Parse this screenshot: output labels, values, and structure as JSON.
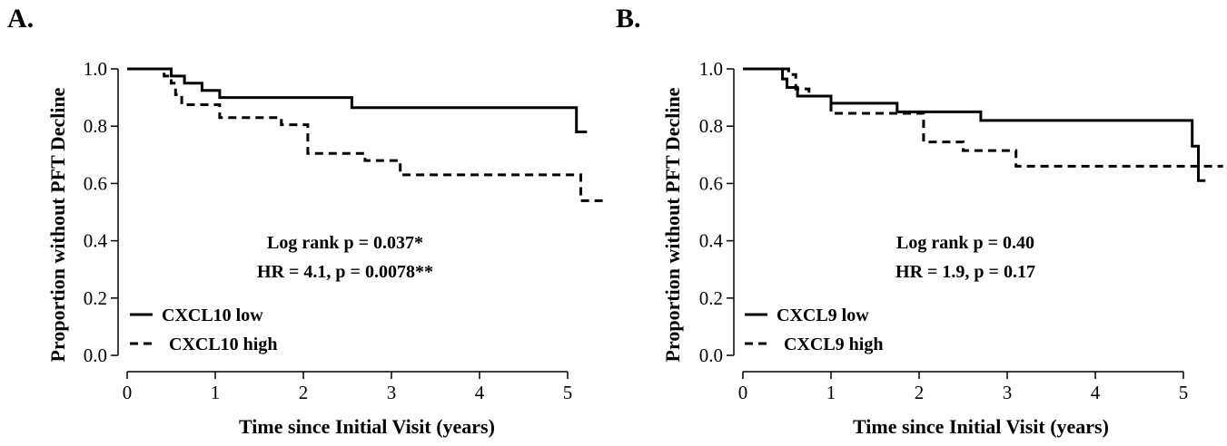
{
  "chart_data": [
    {
      "type": "line",
      "panel_label": "A.",
      "xlabel": "Time since Initial Visit (years)",
      "ylabel": "Proportion without PFT Decline",
      "xlim": [
        0,
        5.45
      ],
      "ylim": [
        0,
        1.0
      ],
      "xticks": [
        "0",
        "1",
        "2",
        "3",
        "4",
        "5"
      ],
      "yticks": [
        "0.0",
        "0.2",
        "0.4",
        "0.6",
        "0.8",
        "1.0"
      ],
      "annotations": [
        "Log rank p = 0.037*",
        "HR = 4.1, p = 0.0078**"
      ],
      "legend_position": "bottom-left",
      "series": [
        {
          "name": "CXCL10 low",
          "style": "solid",
          "color": "#000000",
          "x": [
            0,
            0.5,
            0.5,
            0.65,
            0.65,
            0.85,
            0.85,
            1.05,
            1.05,
            2.55,
            2.55,
            5.1,
            5.1,
            5.22
          ],
          "y": [
            1.0,
            1.0,
            0.975,
            0.975,
            0.95,
            0.95,
            0.925,
            0.925,
            0.9,
            0.9,
            0.865,
            0.865,
            0.78,
            0.78
          ]
        },
        {
          "name": "CXCL10 high",
          "style": "dashed",
          "color": "#000000",
          "x": [
            0,
            0.42,
            0.42,
            0.5,
            0.5,
            0.55,
            0.55,
            0.62,
            0.62,
            1.05,
            1.05,
            1.75,
            1.75,
            2.05,
            2.05,
            2.7,
            2.7,
            3.1,
            3.1,
            5.15,
            5.15,
            5.45
          ],
          "y": [
            1.0,
            1.0,
            0.975,
            0.975,
            0.95,
            0.95,
            0.91,
            0.91,
            0.875,
            0.875,
            0.83,
            0.83,
            0.805,
            0.805,
            0.705,
            0.705,
            0.68,
            0.68,
            0.63,
            0.63,
            0.54,
            0.54
          ]
        }
      ]
    },
    {
      "type": "line",
      "panel_label": "B.",
      "xlabel": "Time since Initial Visit (years)",
      "ylabel": "Proportion without PFT Decline",
      "xlim": [
        0,
        5.45
      ],
      "ylim": [
        0,
        1.0
      ],
      "xticks": [
        "0",
        "1",
        "2",
        "3",
        "4",
        "5"
      ],
      "yticks": [
        "0.0",
        "0.2",
        "0.4",
        "0.6",
        "0.8",
        "1.0"
      ],
      "annotations": [
        "Log rank p = 0.40",
        "HR = 1.9, p = 0.17"
      ],
      "legend_position": "bottom-left",
      "series": [
        {
          "name": "CXCL9 low",
          "style": "solid",
          "color": "#000000",
          "x": [
            0,
            0.45,
            0.45,
            0.5,
            0.5,
            0.62,
            0.62,
            1.0,
            1.0,
            1.75,
            1.75,
            2.7,
            2.7,
            5.1,
            5.1,
            5.17,
            5.17,
            5.25
          ],
          "y": [
            1.0,
            1.0,
            0.965,
            0.965,
            0.935,
            0.935,
            0.905,
            0.905,
            0.88,
            0.88,
            0.85,
            0.85,
            0.82,
            0.82,
            0.73,
            0.73,
            0.61,
            0.61
          ]
        },
        {
          "name": "CXCL9 high",
          "style": "dashed",
          "color": "#000000",
          "x": [
            0,
            0.52,
            0.52,
            0.6,
            0.6,
            0.75,
            0.75,
            1.0,
            1.0,
            2.05,
            2.05,
            2.5,
            2.5,
            3.1,
            3.1,
            5.45
          ],
          "y": [
            1.0,
            1.0,
            0.98,
            0.98,
            0.93,
            0.93,
            0.905,
            0.905,
            0.845,
            0.845,
            0.745,
            0.745,
            0.715,
            0.715,
            0.66,
            0.66
          ]
        }
      ]
    }
  ]
}
